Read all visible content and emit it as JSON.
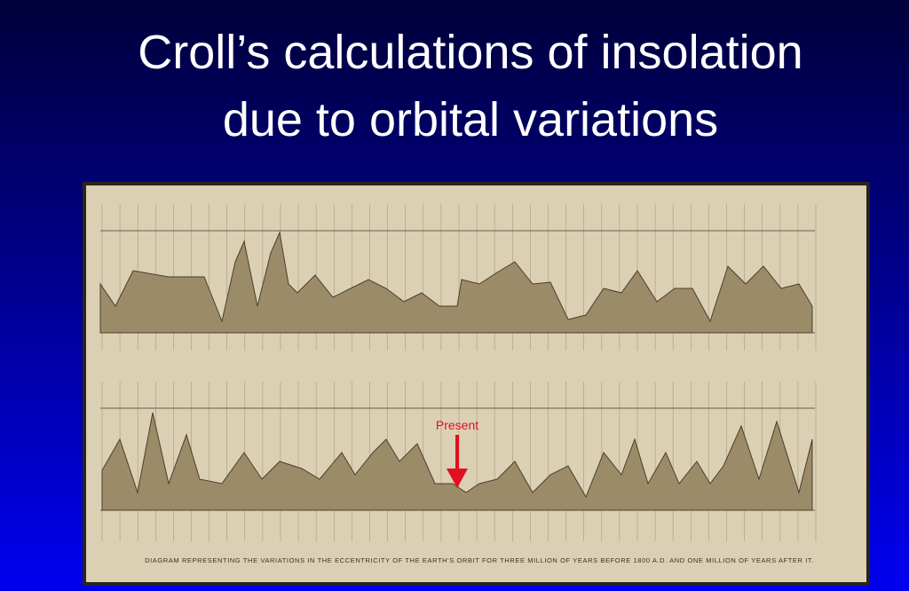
{
  "slide": {
    "title_lines": [
      "Croll’s calculations of insolation",
      "due to orbital variations"
    ],
    "figure": {
      "annotation": "Present",
      "caption": "DIAGRAM REPRESENTING THE VARIATIONS IN THE ECCENTRICITY OF THE EARTH'S ORBIT FOR THREE MILLION OF YEARS BEFORE 1800 A.D. AND ONE MILLION OF YEARS AFTER IT."
    }
  }
}
